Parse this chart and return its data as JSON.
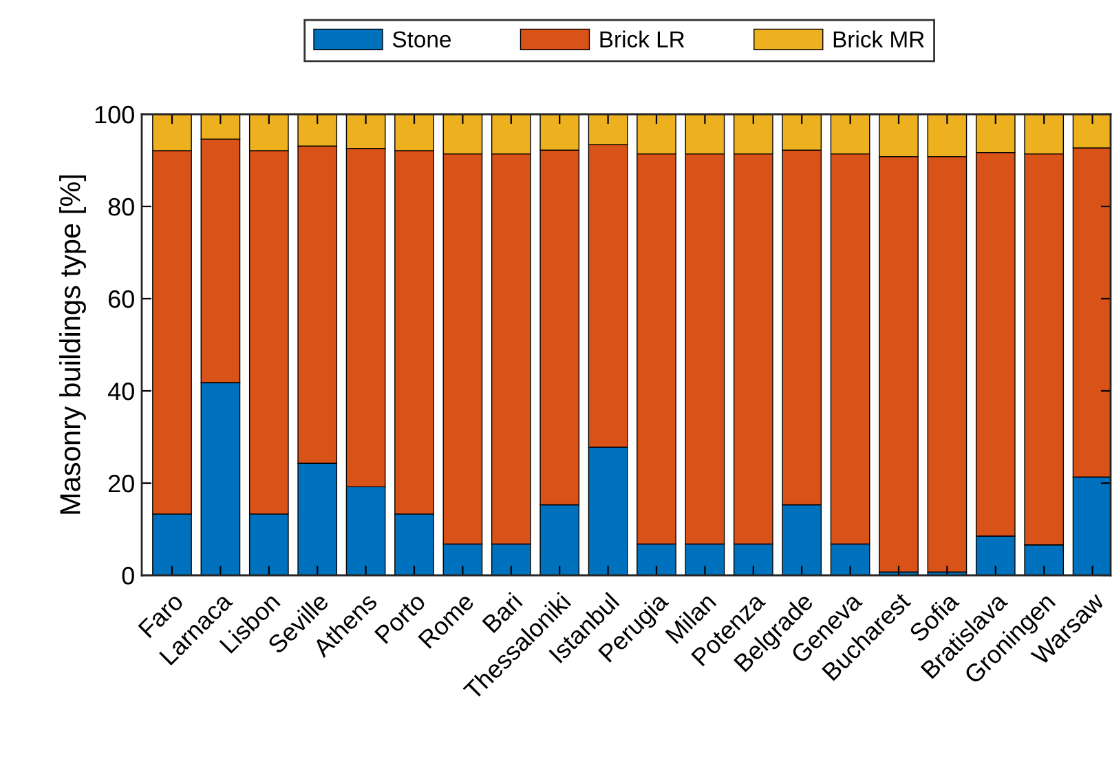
{
  "chart_data": {
    "type": "bar",
    "stacked": true,
    "ylabel": "Masonry buildings type [%]",
    "categories": [
      "Faro",
      "Larnaca",
      "Lisbon",
      "Seville",
      "Athens",
      "Porto",
      "Rome",
      "Bari",
      "Thessaloniki",
      "Istanbul",
      "Perugia",
      "Milan",
      "Potenza",
      "Belgrade",
      "Geneva",
      "Bucharest",
      "Sofia",
      "Bratislava",
      "Groningen",
      "Warsaw"
    ],
    "series": [
      {
        "name": "Stone",
        "color": "#0072bd",
        "values": [
          13.3,
          41.8,
          13.3,
          24.3,
          19.2,
          13.3,
          6.8,
          6.8,
          15.3,
          27.8,
          6.8,
          6.8,
          6.8,
          15.3,
          6.8,
          0.7,
          0.7,
          8.5,
          6.6,
          21.3
        ]
      },
      {
        "name": "Brick LR",
        "color": "#d95319",
        "values": [
          78.8,
          52.8,
          78.8,
          68.8,
          73.4,
          78.8,
          84.6,
          84.6,
          76.9,
          65.6,
          84.6,
          84.6,
          84.6,
          76.9,
          84.6,
          90.1,
          90.1,
          83.2,
          84.8,
          71.4
        ]
      },
      {
        "name": "Brick MR",
        "color": "#edb120",
        "values": [
          7.9,
          5.4,
          7.9,
          6.9,
          7.4,
          7.9,
          8.6,
          8.6,
          7.8,
          6.6,
          8.6,
          8.6,
          8.6,
          7.8,
          8.6,
          9.2,
          9.2,
          8.3,
          8.6,
          7.3
        ]
      }
    ],
    "ylim": [
      0,
      100
    ],
    "yticks": [
      0,
      20,
      40,
      60,
      80,
      100
    ],
    "grid": false,
    "legend": "top"
  }
}
